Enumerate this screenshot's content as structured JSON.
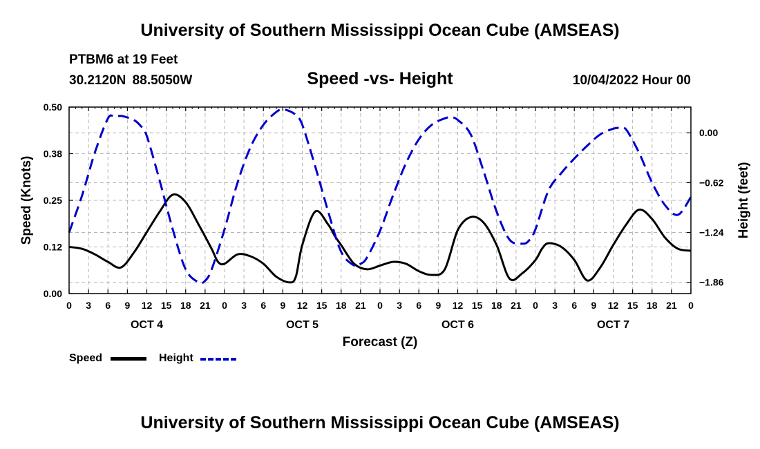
{
  "header": {
    "title": "University of Southern Mississippi Ocean Cube (AMSEAS)",
    "station": "PTBM6 at 19 Feet",
    "coords": "30.2120N  88.5050W",
    "subtitle": "Speed -vs- Height",
    "datestamp": "10/04/2022 Hour 00"
  },
  "footer": {
    "title": "University of Southern Mississippi Ocean Cube (AMSEAS)"
  },
  "legend": {
    "speed_label": "Speed",
    "height_label": "Height"
  },
  "colors": {
    "speed": "#000000",
    "height": "#0000cc",
    "grid": "#b4b4b4"
  },
  "chart_data": {
    "type": "line",
    "xlabel": "Forecast (Z)",
    "ylabel_left": "Speed (Knots)",
    "ylabel_right": "Height (feet)",
    "x_range_hours": [
      0,
      96
    ],
    "x_tick_hours": [
      0,
      3,
      6,
      9,
      12,
      15,
      18,
      21,
      24,
      27,
      30,
      33,
      36,
      39,
      42,
      45,
      48,
      51,
      54,
      57,
      60,
      63,
      66,
      69,
      72,
      75,
      78,
      81,
      84,
      87,
      90,
      93,
      96
    ],
    "x_tick_labels": [
      "0",
      "3",
      "6",
      "9",
      "12",
      "15",
      "18",
      "21",
      "0",
      "3",
      "6",
      "9",
      "12",
      "15",
      "18",
      "21",
      "0",
      "3",
      "6",
      "9",
      "12",
      "15",
      "18",
      "21",
      "0",
      "3",
      "6",
      "9",
      "12",
      "15",
      "18",
      "21",
      "0"
    ],
    "day_labels": [
      {
        "label": "OCT 4",
        "hour": 12
      },
      {
        "label": "OCT 5",
        "hour": 36
      },
      {
        "label": "OCT 6",
        "hour": 60
      },
      {
        "label": "OCT 7",
        "hour": 84
      }
    ],
    "ylim_left": [
      0,
      0.5
    ],
    "y_ticks_left": [
      {
        "value": 0.0,
        "label": "0.00"
      },
      {
        "value": 0.125,
        "label": "0.12"
      },
      {
        "value": 0.25,
        "label": "0.25"
      },
      {
        "value": 0.375,
        "label": "0.38"
      },
      {
        "value": 0.5,
        "label": "0.50"
      }
    ],
    "ylim_right": [
      -2.0,
      0.32
    ],
    "y_ticks_right": [
      {
        "value": 0.0,
        "label": "0.00"
      },
      {
        "value": -0.62,
        "label": "-0.62"
      },
      {
        "value": -1.24,
        "label": "-1.24"
      },
      {
        "value": -1.86,
        "label": "-1.86"
      }
    ],
    "series": [
      {
        "name": "Speed",
        "axis": "left",
        "style": "solid",
        "x": [
          0,
          2,
          4,
          6,
          8,
          10,
          12,
          14,
          16,
          18,
          20,
          22,
          23,
          24,
          26,
          28,
          30,
          32,
          34,
          35,
          36,
          38,
          40,
          41,
          42,
          44,
          46,
          48,
          50,
          52,
          54,
          56,
          58,
          60,
          62,
          64,
          66,
          68,
          70,
          72,
          73,
          74,
          76,
          78,
          80,
          82,
          84,
          86,
          88,
          90,
          92,
          94,
          96
        ],
        "values": [
          0.125,
          0.12,
          0.105,
          0.085,
          0.07,
          0.11,
          0.165,
          0.22,
          0.265,
          0.245,
          0.185,
          0.12,
          0.085,
          0.08,
          0.105,
          0.1,
          0.08,
          0.045,
          0.03,
          0.045,
          0.13,
          0.22,
          0.185,
          0.155,
          0.13,
          0.08,
          0.065,
          0.075,
          0.085,
          0.08,
          0.06,
          0.05,
          0.065,
          0.17,
          0.205,
          0.19,
          0.13,
          0.04,
          0.055,
          0.09,
          0.12,
          0.135,
          0.125,
          0.09,
          0.035,
          0.07,
          0.13,
          0.185,
          0.225,
          0.2,
          0.15,
          0.12,
          0.115
        ]
      },
      {
        "name": "Height",
        "axis": "right",
        "style": "dashed",
        "x": [
          0,
          2,
          4,
          6,
          7,
          8,
          9,
          10,
          11,
          12,
          14,
          16,
          18,
          20,
          21,
          22,
          24,
          26,
          28,
          30,
          32,
          33,
          34,
          35,
          36,
          38,
          40,
          42,
          44,
          45,
          46,
          48,
          50,
          52,
          54,
          56,
          58,
          59,
          60,
          62,
          64,
          66,
          68,
          70,
          71,
          72,
          74,
          76,
          78,
          80,
          82,
          84,
          85,
          86,
          88,
          90,
          92,
          94,
          96
        ],
        "values": [
          -1.24,
          -0.78,
          -0.24,
          0.18,
          0.2,
          0.21,
          0.19,
          0.16,
          0.09,
          -0.04,
          -0.6,
          -1.2,
          -1.7,
          -1.86,
          -1.84,
          -1.7,
          -1.2,
          -0.62,
          -0.18,
          0.1,
          0.26,
          0.29,
          0.27,
          0.22,
          0.1,
          -0.42,
          -0.98,
          -1.48,
          -1.65,
          -1.63,
          -1.55,
          -1.22,
          -0.78,
          -0.38,
          -0.08,
          0.1,
          0.18,
          0.19,
          0.16,
          -0.02,
          -0.48,
          -0.98,
          -1.33,
          -1.38,
          -1.34,
          -1.2,
          -0.72,
          -0.5,
          -0.32,
          -0.16,
          -0.02,
          0.05,
          0.06,
          0.04,
          -0.25,
          -0.62,
          -0.9,
          -1.02,
          -0.8
        ]
      }
    ]
  }
}
